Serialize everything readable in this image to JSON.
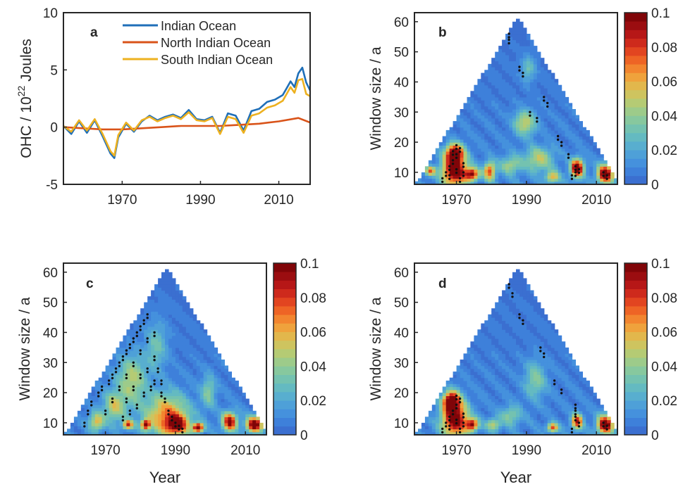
{
  "colormap": [
    "#3B6FD0",
    "#3E80DA",
    "#4591DD",
    "#4EA0D8",
    "#58AECF",
    "#64BAC1",
    "#74C2B0",
    "#87C89E",
    "#9DCB8A",
    "#B5CB74",
    "#CEC45F",
    "#E2B74C",
    "#EFA23C",
    "#F2852F",
    "#EE6425",
    "#E24520",
    "#CE2A1C",
    "#B61717",
    "#9B0D10",
    "#800508"
  ],
  "chart_data": [
    {
      "id": "a",
      "type": "line",
      "panel_label": "a",
      "ylabel": "OHC / 10",
      "ylabel_sup": "22",
      "ylabel_unit": " Joules",
      "xlabel": "",
      "xlim": [
        1955,
        2018
      ],
      "ylim": [
        -5,
        10
      ],
      "xticks": [
        "1970",
        "1990",
        "2010"
      ],
      "yticks": [
        "-5",
        "0",
        "5",
        "10"
      ],
      "legend_position": "top",
      "grid": false,
      "series": [
        {
          "name": "Indian Ocean",
          "color": "#1F6FB8",
          "x": [
            1955,
            1957,
            1959,
            1961,
            1963,
            1965,
            1967,
            1968,
            1969,
            1971,
            1973,
            1975,
            1977,
            1979,
            1981,
            1983,
            1985,
            1987,
            1989,
            1991,
            1993,
            1995,
            1997,
            1999,
            2001,
            2003,
            2005,
            2007,
            2009,
            2011,
            2012,
            2013,
            2014,
            2015,
            2016,
            2017,
            2018
          ],
          "y": [
            0.1,
            -0.6,
            0.5,
            -0.5,
            0.6,
            -0.8,
            -2.3,
            -2.7,
            -0.9,
            0.3,
            -0.4,
            0.5,
            1.0,
            0.6,
            0.9,
            1.1,
            0.8,
            1.5,
            0.7,
            0.6,
            0.9,
            -0.5,
            1.2,
            1.0,
            -0.3,
            1.4,
            1.6,
            2.2,
            2.4,
            2.8,
            3.4,
            4.0,
            3.5,
            4.7,
            5.2,
            3.9,
            3.2
          ]
        },
        {
          "name": "North Indian Ocean",
          "color": "#D95319",
          "x": [
            1955,
            1960,
            1965,
            1970,
            1975,
            1980,
            1985,
            1990,
            1995,
            2000,
            2005,
            2010,
            2015,
            2018
          ],
          "y": [
            0.0,
            -0.1,
            -0.2,
            -0.2,
            -0.1,
            0.0,
            0.1,
            0.1,
            0.1,
            0.2,
            0.3,
            0.5,
            0.8,
            0.4
          ]
        },
        {
          "name": "South Indian Ocean",
          "color": "#EDB120",
          "x": [
            1955,
            1957,
            1959,
            1961,
            1963,
            1965,
            1967,
            1968,
            1969,
            1971,
            1973,
            1975,
            1977,
            1979,
            1981,
            1983,
            1985,
            1987,
            1989,
            1991,
            1993,
            1995,
            1997,
            1999,
            2001,
            2003,
            2005,
            2007,
            2009,
            2011,
            2012,
            2013,
            2014,
            2015,
            2016,
            2017,
            2018
          ],
          "y": [
            0.1,
            -0.4,
            0.6,
            -0.3,
            0.7,
            -0.6,
            -2.1,
            -2.5,
            -0.7,
            0.4,
            -0.3,
            0.6,
            0.9,
            0.5,
            0.8,
            1.0,
            0.7,
            1.3,
            0.6,
            0.5,
            0.8,
            -0.6,
            0.9,
            0.7,
            -0.5,
            1.0,
            1.2,
            1.7,
            1.9,
            2.3,
            2.9,
            3.5,
            3.0,
            4.1,
            4.2,
            2.9,
            2.7
          ]
        }
      ]
    },
    {
      "id": "b",
      "type": "heatmap",
      "panel_label": "b",
      "xlabel": "",
      "ylabel": "Window size / a",
      "xlim": [
        1958,
        2016
      ],
      "ylim": [
        6,
        63
      ],
      "xticks": [
        "1970",
        "1990",
        "2010"
      ],
      "yticks": [
        "10",
        "20",
        "30",
        "40",
        "50",
        "60"
      ],
      "colorbar_ticks": [
        "0",
        "0.02",
        "0.04",
        "0.06",
        "0.08",
        "0.1"
      ],
      "clim": [
        0,
        0.1
      ],
      "apex": [
        1987,
        61
      ],
      "base_range": [
        1958,
        2016
      ],
      "hotspots": [
        {
          "x": 1969,
          "y": 10,
          "v": 0.1,
          "rx": 3.5,
          "ry": 5
        },
        {
          "x": 1969,
          "y": 16,
          "v": 0.09,
          "rx": 2.5,
          "ry": 3
        },
        {
          "x": 1974,
          "y": 9,
          "v": 0.08,
          "rx": 2,
          "ry": 2
        },
        {
          "x": 1979,
          "y": 10,
          "v": 0.07,
          "rx": 1.6,
          "ry": 3
        },
        {
          "x": 1962,
          "y": 10,
          "v": 0.06,
          "rx": 1.5,
          "ry": 1.5
        },
        {
          "x": 2004,
          "y": 11,
          "v": 0.1,
          "rx": 1.8,
          "ry": 3
        },
        {
          "x": 2012,
          "y": 9,
          "v": 0.1,
          "rx": 2.2,
          "ry": 3
        },
        {
          "x": 1989,
          "y": 26,
          "v": 0.045,
          "rx": 3,
          "ry": 4
        },
        {
          "x": 1993,
          "y": 14,
          "v": 0.04,
          "rx": 4,
          "ry": 4
        },
        {
          "x": 1985,
          "y": 12,
          "v": 0.035,
          "rx": 3,
          "ry": 3
        },
        {
          "x": 1997,
          "y": 8,
          "v": 0.05,
          "rx": 2,
          "ry": 2
        },
        {
          "x": 1990,
          "y": 44,
          "v": 0.025,
          "rx": 2,
          "ry": 4
        }
      ],
      "dots": [
        [
          1966,
          8
        ],
        [
          1967,
          10
        ],
        [
          1968,
          12
        ],
        [
          1969,
          14
        ],
        [
          1970,
          16
        ],
        [
          1971,
          18
        ],
        [
          1968,
          9
        ],
        [
          1970,
          11
        ],
        [
          1972,
          13
        ],
        [
          1970,
          19
        ],
        [
          1969,
          17
        ],
        [
          1972,
          10
        ],
        [
          1971,
          8
        ],
        [
          1985,
          56
        ],
        [
          1985,
          54
        ],
        [
          1988,
          45
        ],
        [
          1989,
          43
        ],
        [
          1991,
          30
        ],
        [
          1993,
          28
        ],
        [
          1995,
          35
        ],
        [
          1996,
          33
        ],
        [
          1999,
          22
        ],
        [
          2000,
          20
        ],
        [
          2002,
          16
        ],
        [
          2004,
          10
        ],
        [
          2004,
          12
        ],
        [
          2005,
          11
        ],
        [
          2003,
          9
        ],
        [
          2012,
          10
        ],
        [
          2013,
          9
        ]
      ]
    },
    {
      "id": "c",
      "type": "heatmap",
      "panel_label": "c",
      "xlabel": "Year",
      "ylabel": "Window size / a",
      "xlim": [
        1958,
        2016
      ],
      "ylim": [
        6,
        63
      ],
      "xticks": [
        "1970",
        "1990",
        "2010"
      ],
      "yticks": [
        "10",
        "20",
        "30",
        "40",
        "50",
        "60"
      ],
      "colorbar_ticks": [
        "0",
        "0.02",
        "0.04",
        "0.06",
        "0.08",
        "0.1"
      ],
      "clim": [
        0,
        0.1
      ],
      "apex": [
        1987,
        61
      ],
      "base_range": [
        1958,
        2016
      ],
      "hotspots": [
        {
          "x": 1987,
          "y": 12,
          "v": 0.06,
          "rx": 6,
          "ry": 7
        },
        {
          "x": 1990,
          "y": 9,
          "v": 0.07,
          "rx": 3,
          "ry": 3
        },
        {
          "x": 1977,
          "y": 24,
          "v": 0.04,
          "rx": 4,
          "ry": 8
        },
        {
          "x": 1972,
          "y": 15,
          "v": 0.04,
          "rx": 3,
          "ry": 5
        },
        {
          "x": 1967,
          "y": 10,
          "v": 0.05,
          "rx": 2,
          "ry": 3
        },
        {
          "x": 1976,
          "y": 9,
          "v": 0.07,
          "rx": 1.5,
          "ry": 1.5
        },
        {
          "x": 1981,
          "y": 9,
          "v": 0.09,
          "rx": 1.2,
          "ry": 1.5
        },
        {
          "x": 1996,
          "y": 8,
          "v": 0.1,
          "rx": 1.5,
          "ry": 1.5
        },
        {
          "x": 2005,
          "y": 10,
          "v": 0.09,
          "rx": 2,
          "ry": 3
        },
        {
          "x": 2012,
          "y": 9,
          "v": 0.1,
          "rx": 2.2,
          "ry": 2.5
        },
        {
          "x": 1999,
          "y": 20,
          "v": 0.03,
          "rx": 2,
          "ry": 5
        },
        {
          "x": 1984,
          "y": 35,
          "v": 0.025,
          "rx": 3,
          "ry": 8
        }
      ],
      "dots": [
        [
          1964,
          10
        ],
        [
          1965,
          14
        ],
        [
          1966,
          17
        ],
        [
          1968,
          20
        ],
        [
          1969,
          22
        ],
        [
          1971,
          24
        ],
        [
          1972,
          26
        ],
        [
          1973,
          28
        ],
        [
          1974,
          30
        ],
        [
          1975,
          32
        ],
        [
          1976,
          34
        ],
        [
          1977,
          36
        ],
        [
          1978,
          38
        ],
        [
          1979,
          40
        ],
        [
          1980,
          42
        ],
        [
          1981,
          44
        ],
        [
          1982,
          46
        ],
        [
          1974,
          22
        ],
        [
          1976,
          26
        ],
        [
          1978,
          30
        ],
        [
          1980,
          34
        ],
        [
          1982,
          38
        ],
        [
          1984,
          40
        ],
        [
          1976,
          18
        ],
        [
          1978,
          22
        ],
        [
          1980,
          26
        ],
        [
          1982,
          28
        ],
        [
          1984,
          32
        ],
        [
          1986,
          20
        ],
        [
          1987,
          18
        ],
        [
          1988,
          14
        ],
        [
          1989,
          12
        ],
        [
          1990,
          10
        ],
        [
          1991,
          9
        ],
        [
          1992,
          8
        ],
        [
          1986,
          24
        ],
        [
          1984,
          24
        ],
        [
          1985,
          28
        ],
        [
          1983,
          22
        ],
        [
          1981,
          20
        ],
        [
          1979,
          16
        ],
        [
          1977,
          14
        ],
        [
          1975,
          12
        ],
        [
          1970,
          14
        ],
        [
          1972,
          18
        ]
      ]
    },
    {
      "id": "d",
      "type": "heatmap",
      "panel_label": "d",
      "xlabel": "Year",
      "ylabel": "Window size / a",
      "xlim": [
        1958,
        2016
      ],
      "ylim": [
        6,
        63
      ],
      "xticks": [
        "1970",
        "1990",
        "2010"
      ],
      "yticks": [
        "10",
        "20",
        "30",
        "40",
        "50",
        "60"
      ],
      "colorbar_ticks": [
        "0",
        "0.02",
        "0.04",
        "0.06",
        "0.08",
        "0.1"
      ],
      "clim": [
        0,
        0.1
      ],
      "apex": [
        1987,
        61
      ],
      "base_range": [
        1958,
        2016
      ],
      "hotspots": [
        {
          "x": 1969,
          "y": 11,
          "v": 0.1,
          "rx": 3.5,
          "ry": 6
        },
        {
          "x": 1968,
          "y": 17,
          "v": 0.09,
          "rx": 2.2,
          "ry": 3
        },
        {
          "x": 1974,
          "y": 9,
          "v": 0.08,
          "rx": 1.8,
          "ry": 2
        },
        {
          "x": 2004,
          "y": 10,
          "v": 0.08,
          "rx": 1.5,
          "ry": 2.5
        },
        {
          "x": 2012,
          "y": 9,
          "v": 0.1,
          "rx": 2.2,
          "ry": 3
        },
        {
          "x": 1997,
          "y": 8,
          "v": 0.07,
          "rx": 1.5,
          "ry": 1.5
        },
        {
          "x": 1985,
          "y": 12,
          "v": 0.03,
          "rx": 3,
          "ry": 3
        },
        {
          "x": 1992,
          "y": 24,
          "v": 0.03,
          "rx": 3,
          "ry": 6
        },
        {
          "x": 1980,
          "y": 9,
          "v": 0.04,
          "rx": 2,
          "ry": 2
        }
      ],
      "dots": [
        [
          1966,
          8
        ],
        [
          1967,
          10
        ],
        [
          1968,
          12
        ],
        [
          1969,
          14
        ],
        [
          1970,
          16
        ],
        [
          1971,
          18
        ],
        [
          1968,
          9
        ],
        [
          1970,
          11
        ],
        [
          1972,
          13
        ],
        [
          1970,
          19
        ],
        [
          1972,
          10
        ],
        [
          1971,
          8
        ],
        [
          1985,
          56
        ],
        [
          1986,
          53
        ],
        [
          1988,
          46
        ],
        [
          1989,
          44
        ],
        [
          1994,
          35
        ],
        [
          1995,
          33
        ],
        [
          1998,
          24
        ],
        [
          2000,
          21
        ],
        [
          2004,
          16
        ],
        [
          2004,
          14
        ],
        [
          2004,
          12
        ],
        [
          2005,
          10
        ],
        [
          2003,
          8
        ],
        [
          2012,
          10
        ],
        [
          2013,
          9
        ]
      ]
    }
  ]
}
